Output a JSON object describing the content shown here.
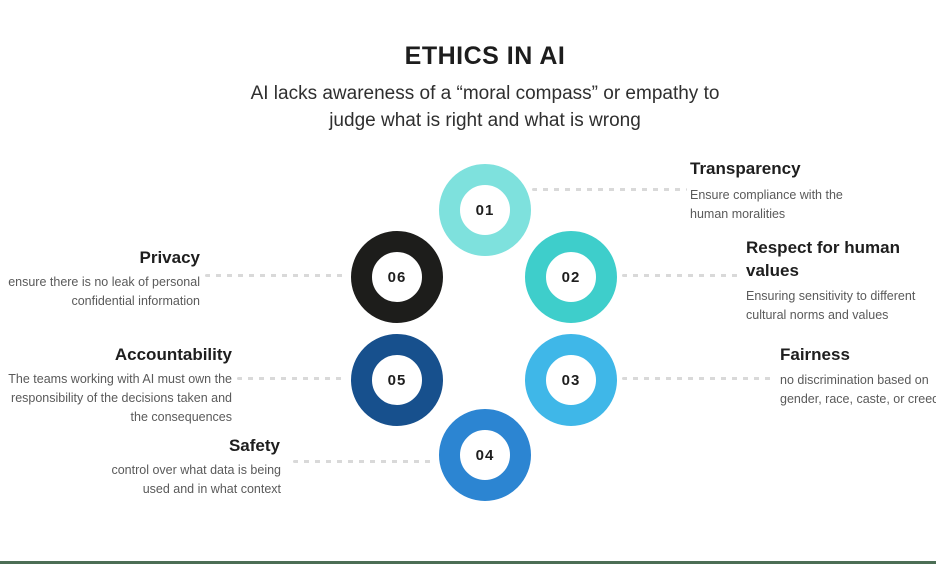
{
  "header": {
    "title": "ETHICS IN AI",
    "subtitle_line1": "AI lacks awareness of a “moral compass” or empathy to",
    "subtitle_line2": "judge what is right and what is wrong"
  },
  "items": [
    {
      "number": "01",
      "label": "Transparency",
      "description": "Ensure compliance with the human moralities",
      "color": "#7EE1DD"
    },
    {
      "number": "02",
      "label": "Respect for human values",
      "description": "Ensuring sensitivity to different cultural norms and values",
      "color": "#3ECECB"
    },
    {
      "number": "03",
      "label": "Fairness",
      "description": "no discrimination based on gender, race, caste, or creed",
      "color": "#3FB7E8"
    },
    {
      "number": "04",
      "label": "Safety",
      "description": "control over what data is being used and in what context",
      "color": "#2C85D2"
    },
    {
      "number": "05",
      "label": "Accountability",
      "description": "The teams working with AI must own the responsibility of the decisions taken and the consequences",
      "color": "#17508D"
    },
    {
      "number": "06",
      "label": "Privacy",
      "description": "ensure there is no leak of personal confidential information",
      "color": "#1D1D1B"
    }
  ],
  "footer": {
    "divider_color": "#4c6e55"
  },
  "connector_color": "#d9d9d9"
}
